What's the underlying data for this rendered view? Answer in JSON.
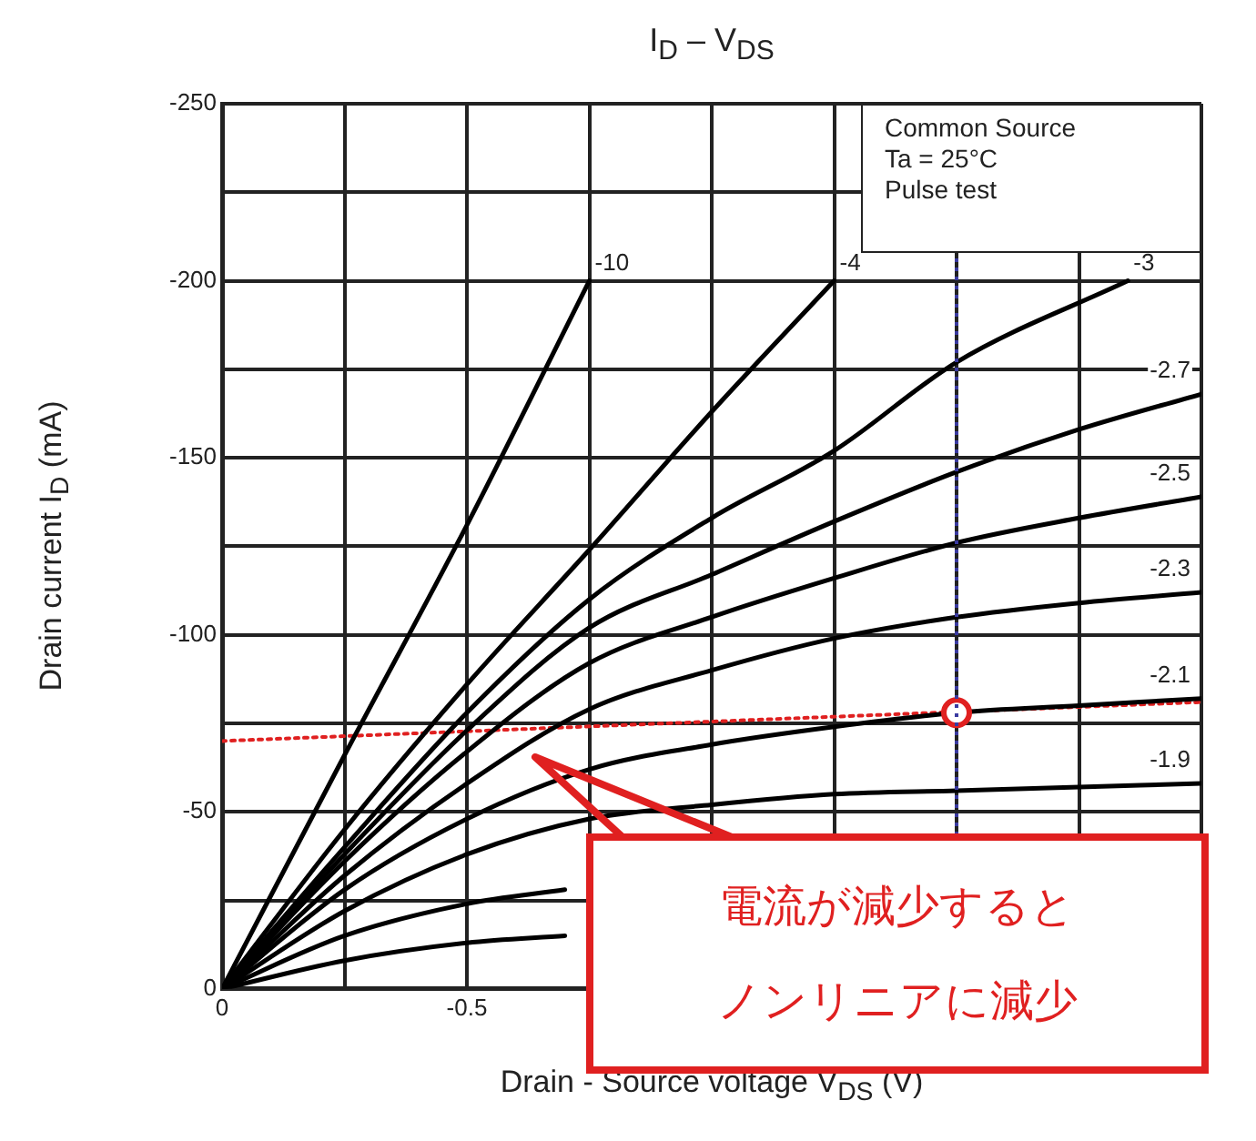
{
  "chart_data": {
    "type": "line",
    "title": "I$_{D}$ – V$_{DS}$",
    "xlabel": "Drain - Source voltage   V$_{DS}$   (V)",
    "ylabel": "Drain current   I$_{D}$   (mA)",
    "xlim": [
      0,
      -2
    ],
    "ylim": [
      0,
      -250
    ],
    "xticks": [
      0,
      {
        "value": -0.25,
        "label": null
      },
      -0.5,
      {
        "value": -0.75,
        "label": null
      },
      {
        "value": -1,
        "label": null
      },
      {
        "value": -1.25,
        "label": null
      },
      {
        "value": -1.5,
        "label": null
      },
      {
        "value": -1.75,
        "label": null
      },
      {
        "value": -2,
        "label": null
      }
    ],
    "yticks": [
      0,
      {
        "value": -25,
        "label": null
      },
      -50,
      {
        "value": -75,
        "label": null
      },
      -100,
      {
        "value": -125,
        "label": null
      },
      -150,
      {
        "value": -175,
        "label": null
      },
      -200,
      {
        "value": -225,
        "label": null
      },
      -250
    ],
    "grid": true,
    "legend": false,
    "marker": "none",
    "line_style": "solid",
    "series": [
      {
        "name": "-10",
        "color": "#000000",
        "x": [
          0,
          -0.25,
          -0.5,
          -0.75
        ],
        "values": [
          0,
          -66,
          -131,
          -200
        ]
      },
      {
        "name": "-4",
        "color": "#000000",
        "x": [
          0,
          -0.25,
          -0.5,
          -0.75,
          -1,
          -1.25
        ],
        "values": [
          0,
          -45,
          -86,
          -124,
          -163,
          -200
        ]
      },
      {
        "name": "-3",
        "color": "#000000",
        "x": [
          0,
          -0.25,
          -0.5,
          -0.75,
          -1,
          -1.25,
          -1.5,
          -1.85
        ],
        "values": [
          0,
          -40,
          -78,
          -110,
          -133,
          -152,
          -177,
          -200
        ]
      },
      {
        "name": "-2.7",
        "color": "#000000",
        "x": [
          0,
          -0.25,
          -0.5,
          -0.75,
          -1,
          -1.25,
          -1.5,
          -1.75,
          -2
        ],
        "values": [
          0,
          -38,
          -73,
          -102,
          -117,
          -132,
          -146,
          -158,
          -168
        ]
      },
      {
        "name": "-2.5",
        "color": "#000000",
        "x": [
          0,
          -0.25,
          -0.5,
          -0.75,
          -1,
          -1.25,
          -1.5,
          -1.75,
          -2
        ],
        "values": [
          0,
          -36,
          -67,
          -92,
          -105,
          -116,
          -126,
          -133,
          -139
        ]
      },
      {
        "name": "-2.3",
        "color": "#000000",
        "x": [
          0,
          -0.25,
          -0.5,
          -0.75,
          -1,
          -1.25,
          -1.5,
          -1.75,
          -2
        ],
        "values": [
          0,
          -32,
          -58,
          -79,
          -90,
          -99,
          -105,
          -109,
          -112
        ]
      },
      {
        "name": "-2.1",
        "color": "#000000",
        "x": [
          0,
          -0.25,
          -0.5,
          -0.75,
          -1,
          -1.25,
          -1.5,
          -1.75,
          -2
        ],
        "values": [
          0,
          -28,
          -48,
          -62,
          -69,
          -74,
          -78,
          -80,
          -82
        ]
      },
      {
        "name": "-1.9",
        "color": "#000000",
        "x": [
          0,
          -0.25,
          -0.5,
          -0.75,
          -1,
          -1.25,
          -1.5,
          -1.75,
          -2
        ],
        "values": [
          0,
          -22,
          -38,
          -48,
          -52,
          -55,
          -56,
          -57,
          -58
        ]
      },
      {
        "color": "#000000",
        "x": [
          0,
          -0.25,
          -0.5,
          -0.7
        ],
        "values": [
          0,
          -15,
          -24,
          -28
        ]
      },
      {
        "color": "#000000",
        "x": [
          0,
          -0.25,
          -0.5,
          -0.7
        ],
        "values": [
          0,
          -8,
          -13,
          -15
        ]
      },
      {
        "type": "line",
        "color": "#e02020",
        "line_style": "dotted",
        "x": [
          0,
          -2
        ],
        "values": [
          -70,
          -81
        ]
      },
      {
        "type": "scatter",
        "color": "#e02020",
        "marker": "circle",
        "x": [
          -1.5
        ],
        "values": [
          -78
        ]
      }
    ],
    "ref_lines": [
      {
        "axis": "x",
        "value": -1.5,
        "color": "#3a3aa0",
        "line_style": "dotted"
      }
    ],
    "annotations": [
      "Common Source\nTa = 25°C\nPulse test",
      "電流が減少するとノンリニアに減少"
    ]
  }
}
